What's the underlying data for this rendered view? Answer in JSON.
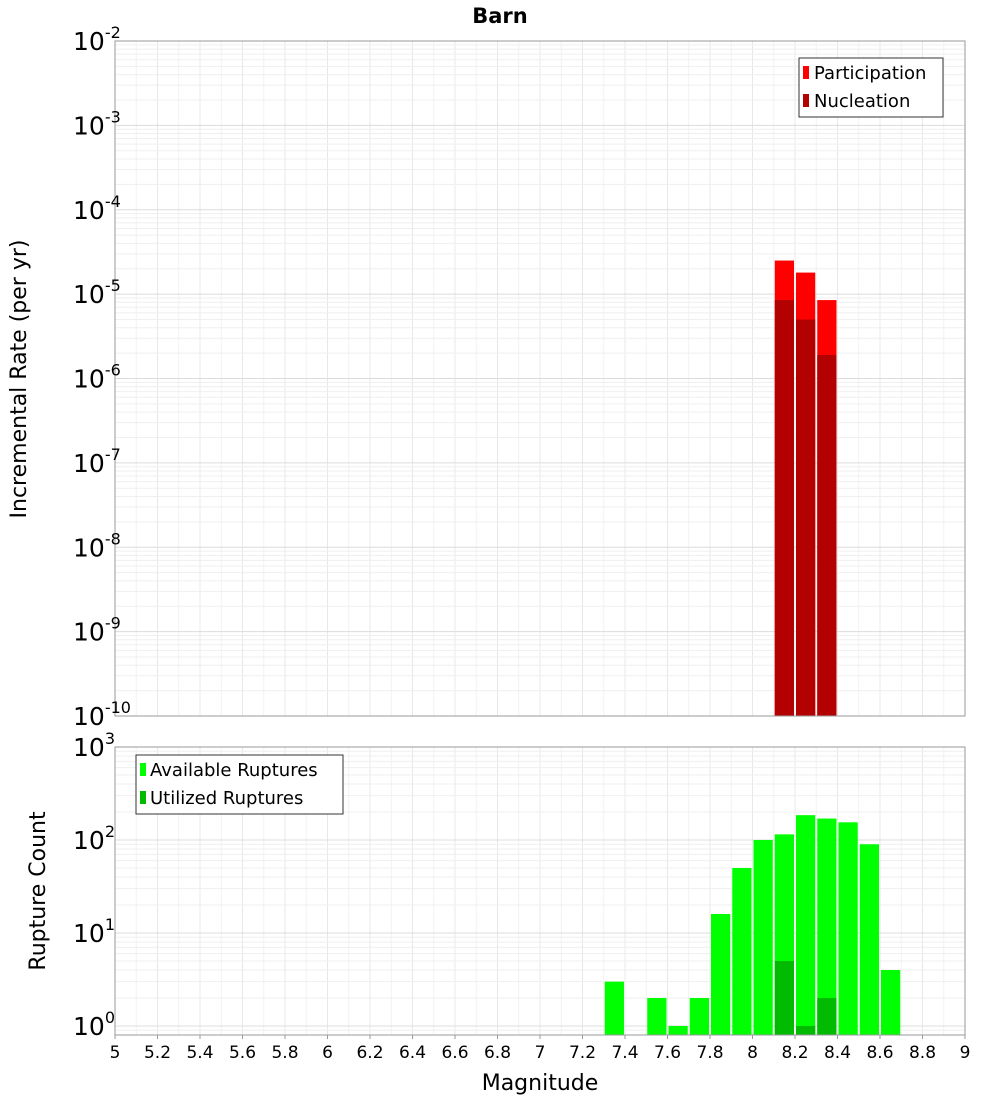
{
  "chart_data": [
    {
      "type": "bar",
      "title": "Barn",
      "xlabel": "",
      "ylabel": "Incremental Rate (per yr)",
      "yscale": "log",
      "xlim": [
        5,
        9
      ],
      "ylim": [
        1e-10,
        0.01
      ],
      "y_tick_exponents": [
        -10,
        -9,
        -8,
        -7,
        -6,
        -5,
        -4,
        -3,
        -2
      ],
      "bar_width": 0.1,
      "legend_position": "top-right",
      "grid": true,
      "series": [
        {
          "name": "Participation",
          "color": "#ff0000",
          "x": [
            8.15,
            8.25,
            8.35
          ],
          "values": [
            2.5e-05,
            1.8e-05,
            8.5e-06
          ]
        },
        {
          "name": "Nucleation",
          "color": "#b30000",
          "x": [
            8.15,
            8.25,
            8.35
          ],
          "values": [
            8.5e-06,
            5e-06,
            1.9e-06
          ]
        }
      ]
    },
    {
      "type": "bar",
      "title": "",
      "xlabel": "Magnitude",
      "ylabel": "Rupture Count",
      "yscale": "log",
      "xlim": [
        5,
        9
      ],
      "ylim": [
        0.8,
        1000
      ],
      "y_tick_exponents": [
        0,
        1,
        2,
        3
      ],
      "x_ticks": [
        "5",
        "5.2",
        "5.4",
        "5.6",
        "5.8",
        "6",
        "6.2",
        "6.4",
        "6.6",
        "6.8",
        "7",
        "7.2",
        "7.4",
        "7.6",
        "7.8",
        "8",
        "8.2",
        "8.4",
        "8.6",
        "8.8",
        "9"
      ],
      "bar_width": 0.1,
      "legend_position": "top-left",
      "grid": true,
      "series": [
        {
          "name": "Available Ruptures",
          "color": "#00ff00",
          "x": [
            7.35,
            7.55,
            7.65,
            7.75,
            7.85,
            7.95,
            8.05,
            8.15,
            8.25,
            8.35,
            8.45,
            8.55,
            8.65
          ],
          "values": [
            3,
            2,
            1,
            2,
            16,
            50,
            100,
            115,
            185,
            170,
            155,
            90,
            4
          ]
        },
        {
          "name": "Utilized Ruptures",
          "color": "#00bb00",
          "x": [
            8.15,
            8.25,
            8.35
          ],
          "values": [
            5,
            1,
            2
          ]
        }
      ]
    }
  ]
}
